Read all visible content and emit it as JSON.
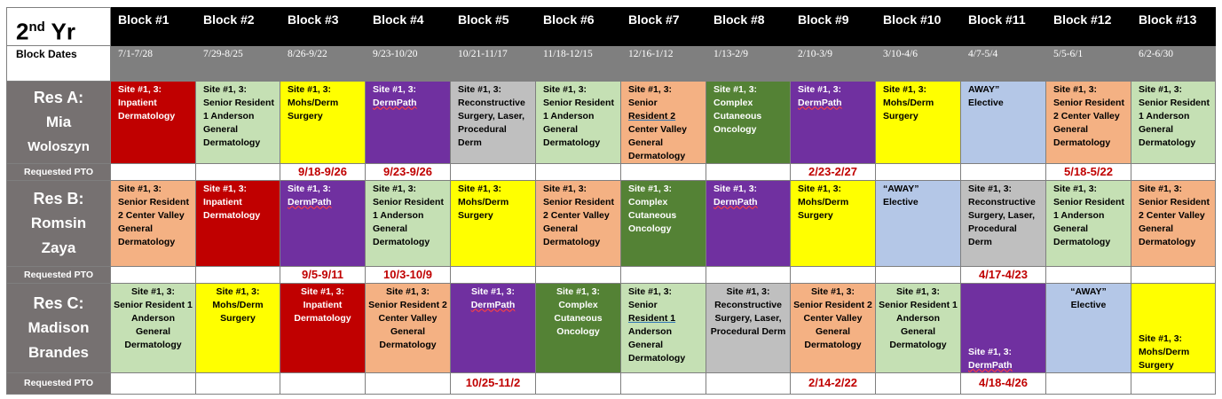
{
  "title_main": "2",
  "title_sup": "nd",
  "title_rest": " Yr",
  "blocks": [
    "Block #1",
    "Block #2",
    "Block #3",
    "Block #4",
    "Block #5",
    "Block #6",
    "Block #7",
    "Block #8",
    "Block #9",
    "Block #10",
    "Block #11",
    "Block #12",
    "Block #13"
  ],
  "dates_label": "Block Dates",
  "dates": [
    "7/1-7/28",
    "7/29-8/25",
    "8/26-9/22",
    "9/23-10/20",
    "10/21-11/17",
    "11/18-12/15",
    "12/16-1/12",
    "1/13-2/9",
    "2/10-3/9",
    "3/10-4/6",
    "4/7-5/4",
    "5/5-6/1",
    "6/2-6/30"
  ],
  "pto_label": "Requested PTO",
  "residents": [
    {
      "res": "Res A:",
      "first": "Mia",
      "last": "Woloszyn",
      "cells": [
        {
          "line1": "Site #1, 3:",
          "rest": "Inpatient Dermatology"
        },
        {
          "line1": "Site #1, 3:",
          "rest": "Senior Resident 1 Anderson General Dermatology"
        },
        {
          "line1": "Site #1, 3:",
          "rest": "Mohs/Derm Surgery"
        },
        {
          "line1": "Site #1, 3:",
          "rest": "DermPath"
        },
        {
          "line1": "Site #1, 3:",
          "rest": "Reconstructive Surgery, Laser, Procedural Derm"
        },
        {
          "line1": "Site #1, 3:",
          "rest": "Senior Resident 1 Anderson General Dermatology"
        },
        {
          "line1": "Site #1, 3:",
          "rest_a": "Senior",
          "rest_u": "Resident 2",
          "rest_b": "Center Valley General Dermatology"
        },
        {
          "line1": "Site #1, 3:",
          "rest": "Complex Cutaneous Oncology"
        },
        {
          "line1": "Site #1, 3:",
          "rest": "DermPath"
        },
        {
          "line1": "Site #1, 3:",
          "rest": "Mohs/Derm Surgery"
        },
        {
          "line1": "AWAY”",
          "rest": "Elective"
        },
        {
          "line1": "Site #1, 3:",
          "rest": "Senior Resident 2 Center Valley General Dermatology"
        },
        {
          "line1": "Site #1, 3:",
          "rest": "Senior Resident 1 Anderson General Dermatology"
        }
      ],
      "pto": [
        "",
        "",
        "9/18-9/26",
        "9/23-9/26",
        "",
        "",
        "",
        "",
        "2/23-2/27",
        "",
        "",
        "5/18-5/22",
        ""
      ]
    },
    {
      "res": "Res B:",
      "first": "Romsin",
      "last": "Zaya",
      "cells": [
        {
          "line1": "Site #1, 3:",
          "rest": "Senior Resident 2 Center Valley General Dermatology"
        },
        {
          "line1": "Site #1, 3:",
          "rest": "Inpatient Dermatology"
        },
        {
          "line1": "Site #1, 3:",
          "rest": "DermPath"
        },
        {
          "line1": "Site #1, 3:",
          "rest": "Senior Resident 1 Anderson General Dermatology"
        },
        {
          "line1": "Site #1, 3:",
          "rest": "Mohs/Derm Surgery"
        },
        {
          "line1": "Site #1, 3:",
          "rest": "Senior Resident 2 Center Valley General Dermatology"
        },
        {
          "line1": "Site #1, 3:",
          "rest": "Complex Cutaneous Oncology"
        },
        {
          "line1": "Site #1, 3:",
          "rest": "DermPath"
        },
        {
          "line1": "Site #1, 3:",
          "rest": "Mohs/Derm Surgery"
        },
        {
          "line1": "“AWAY”",
          "rest": "Elective"
        },
        {
          "line1": "Site #1, 3:",
          "rest": "Reconstructive Surgery, Laser, Procedural Derm"
        },
        {
          "line1": "Site #1, 3:",
          "rest": "Senior Resident 1 Anderson General Dermatology"
        },
        {
          "line1": "Site #1, 3:",
          "rest": "Senior Resident 2 Center Valley General Dermatology"
        }
      ],
      "pto": [
        "",
        "",
        "9/5-9/11",
        "10/3-10/9",
        "",
        "",
        "",
        "",
        "",
        "",
        "4/17-4/23",
        "",
        ""
      ]
    },
    {
      "res": "Res C:",
      "first": "Madison",
      "last": "Brandes",
      "cells": [
        {
          "line1": "Site #1, 3:",
          "rest": "Senior Resident 1 Anderson General Dermatology"
        },
        {
          "line1": "Site #1, 3:",
          "rest": "Mohs/Derm Surgery"
        },
        {
          "line1": "Site #1, 3:",
          "rest": "Inpatient Dermatology"
        },
        {
          "line1": "Site #1, 3:",
          "rest": "Senior Resident 2 Center Valley General Dermatology"
        },
        {
          "line1": "Site #1, 3:",
          "rest": "DermPath"
        },
        {
          "line1": "Site #1, 3:",
          "rest": "Complex Cutaneous Oncology"
        },
        {
          "line1": "Site #1, 3:",
          "rest_a": "Senior",
          "rest_u": "Resident 1",
          "rest_b": "Anderson General Dermatology"
        },
        {
          "line1": "Site #1, 3:",
          "rest": "Reconstructive Surgery, Laser, Procedural Derm"
        },
        {
          "line1": "Site #1, 3:",
          "rest": "Senior Resident 2 Center Valley General Dermatology"
        },
        {
          "line1": "Site #1, 3:",
          "rest": "Senior Resident 1 Anderson General Dermatology"
        },
        {
          "line1": "Site #1, 3:",
          "rest": "DermPath"
        },
        {
          "line1": "“AWAY”",
          "rest": "Elective"
        },
        {
          "line1": "Site #1, 3:",
          "rest": "Mohs/Derm Surgery"
        }
      ],
      "pto": [
        "",
        "",
        "",
        "",
        "10/25-11/2",
        "",
        "",
        "",
        "2/14-2/22",
        "",
        "4/18-4/26",
        "",
        ""
      ]
    }
  ],
  "colors": {
    "inpatient": "#c00000",
    "senior1": "#c5e0b4",
    "mohs": "#ffff00",
    "dermpath": "#7030a0",
    "reconstructive": "#bfbfbf",
    "senior2": "#f4b183",
    "oncology": "#548235",
    "away": "#b4c7e7",
    "resident_label": "#767171",
    "pto_text": "#c00000"
  }
}
